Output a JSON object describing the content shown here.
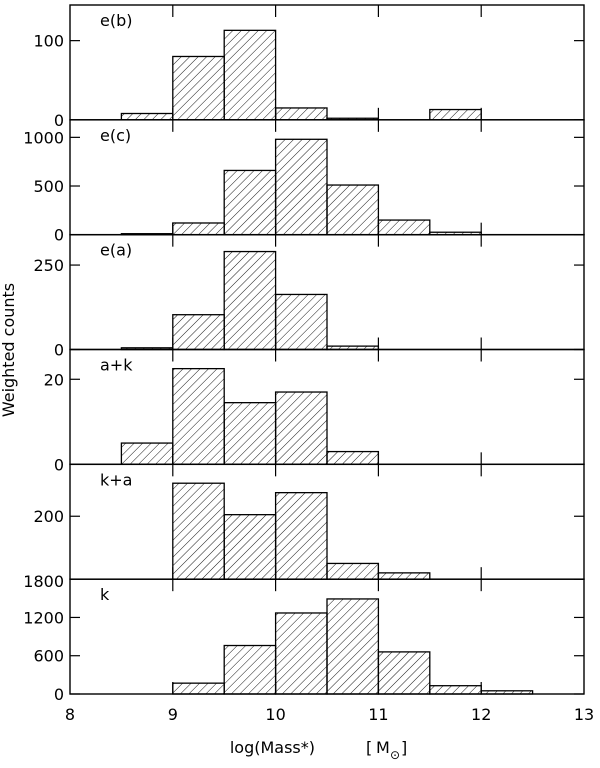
{
  "figure": {
    "ylabel": "Weighted counts",
    "xlabel": "log(Mass*)",
    "xunit": "M",
    "xunit_symbol": "⊙"
  },
  "chart_data": [
    {
      "type": "bar",
      "panel_label": "e(b)",
      "bin_edges": [
        8.5,
        9,
        9.5,
        10,
        10.5,
        11,
        11.5,
        12
      ],
      "values": [
        8,
        80,
        113,
        15,
        2,
        0,
        13
      ],
      "ylim": [
        0,
        145
      ],
      "yticks": [
        0,
        100
      ],
      "xlim": [
        8,
        13
      ]
    },
    {
      "type": "bar",
      "panel_label": "e(c)",
      "bin_edges": [
        8.5,
        9,
        9.5,
        10,
        10.5,
        11,
        11.5,
        12
      ],
      "values": [
        10,
        120,
        660,
        980,
        510,
        150,
        25
      ],
      "ylim": [
        0,
        1180
      ],
      "yticks": [
        0,
        500,
        1000
      ],
      "xlim": [
        8,
        13
      ]
    },
    {
      "type": "bar",
      "panel_label": "e(a)",
      "bin_edges": [
        8.5,
        9,
        9.5,
        10,
        10.5,
        11
      ],
      "values": [
        5,
        103,
        290,
        163,
        10
      ],
      "ylim": [
        0,
        340
      ],
      "yticks": [
        0,
        250
      ],
      "xlim": [
        8,
        13
      ]
    },
    {
      "type": "bar",
      "panel_label": "a+k",
      "bin_edges": [
        8.5,
        9,
        9.5,
        10,
        10.5,
        11
      ],
      "values": [
        5,
        22.5,
        14.5,
        17,
        3
      ],
      "ylim": [
        0,
        27
      ],
      "yticks": [
        0,
        20
      ],
      "xlim": [
        8,
        13
      ]
    },
    {
      "type": "bar",
      "panel_label": "k+a",
      "bin_edges": [
        9,
        9.5,
        10,
        10.5,
        11,
        11.5
      ],
      "values": [
        305,
        205,
        275,
        50,
        20
      ],
      "ylim": [
        0,
        365
      ],
      "yticks": [
        200
      ],
      "xlim": [
        8,
        13
      ]
    },
    {
      "type": "bar",
      "panel_label": "k",
      "bin_edges": [
        9,
        9.5,
        10,
        10.5,
        11,
        11.5,
        12,
        12.5
      ],
      "values": [
        170,
        760,
        1270,
        1490,
        660,
        130,
        50
      ],
      "ylim": [
        0,
        1800
      ],
      "yticks": [
        0,
        600,
        1200,
        1800
      ],
      "xlim": [
        8,
        13
      ],
      "xticks": [
        8,
        9,
        10,
        11,
        12,
        13
      ]
    }
  ]
}
